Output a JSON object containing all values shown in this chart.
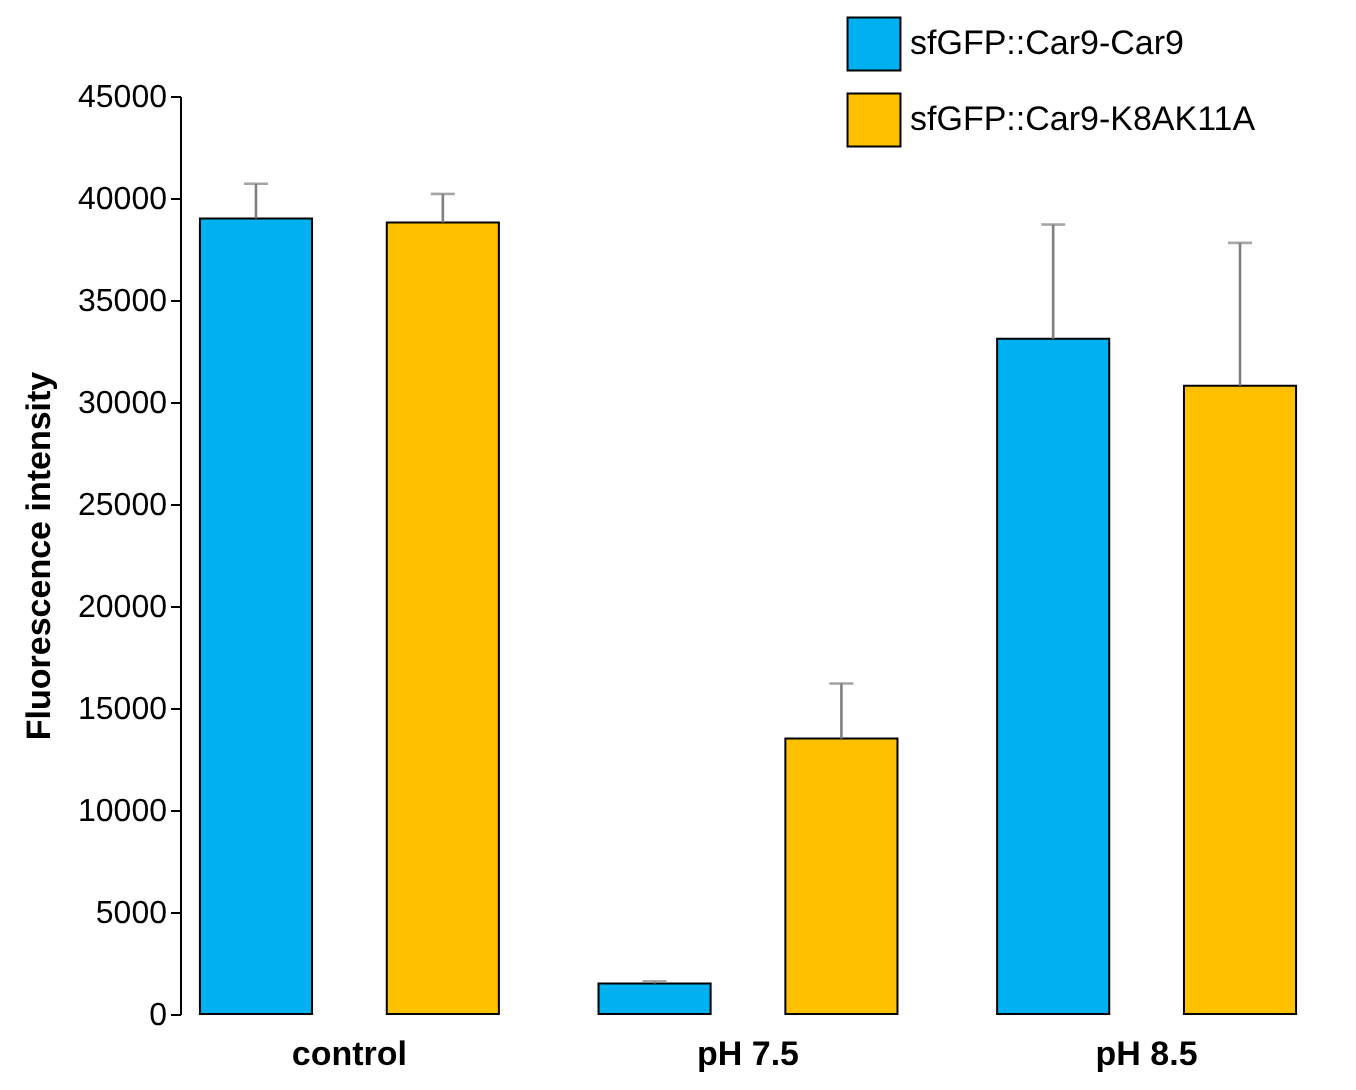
{
  "chart_data": {
    "type": "bar",
    "ylabel": "Fluorescence intensity",
    "categories": [
      "control",
      "pH 7.5",
      "pH 8.5"
    ],
    "series": [
      {
        "name": "sfGFP::Car9-Car9",
        "color": "#00b0f0",
        "values": [
          39000,
          1500,
          33100
        ],
        "errors": [
          [
            39000,
            40700
          ],
          [
            1500,
            1600
          ],
          [
            33100,
            38700
          ]
        ]
      },
      {
        "name": "sfGFP::Car9-K8AK11A",
        "color": "#ffc000",
        "values": [
          38800,
          13500,
          30800
        ],
        "errors": [
          [
            38800,
            40200
          ],
          [
            13500,
            16200
          ],
          [
            30800,
            37800
          ]
        ]
      }
    ],
    "ylim": [
      0,
      45000
    ],
    "yticks": [
      0,
      5000,
      10000,
      15000,
      20000,
      25000,
      30000,
      35000,
      40000,
      45000
    ],
    "grid": false,
    "legend": "top right"
  }
}
